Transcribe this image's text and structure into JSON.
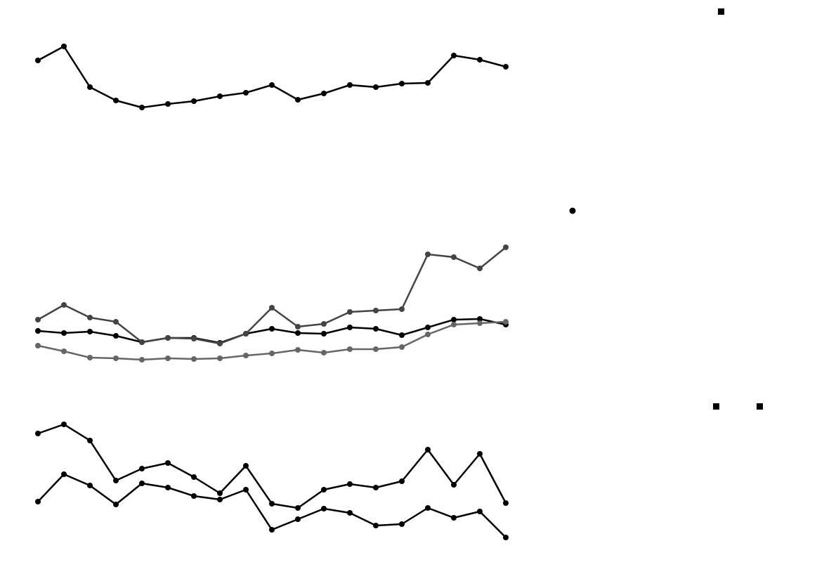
{
  "chart_data": [
    {
      "type": "line",
      "ylim": [
        0,
        230
      ],
      "series": [
        {
          "color": "#000000",
          "values": [
            174,
            194,
            136,
            117,
            107,
            112,
            116,
            123,
            128,
            139,
            118,
            127,
            139,
            136,
            141,
            142,
            181,
            175,
            165
          ]
        }
      ]
    },
    {
      "type": "line",
      "ylim": [
        0,
        220
      ],
      "series": [
        {
          "color": "#000000",
          "values": [
            69,
            66,
            68,
            62,
            53,
            59,
            59,
            52,
            65,
            72,
            66,
            65,
            74,
            72,
            63,
            74,
            85,
            86,
            78
          ]
        },
        {
          "color": "#444444",
          "values": [
            85,
            106,
            88,
            82,
            53,
            59,
            58,
            51,
            65,
            102,
            75,
            79,
            96,
            98,
            100,
            178,
            174,
            158,
            188
          ]
        },
        {
          "color": "#666666",
          "values": [
            48,
            40,
            31,
            30,
            28,
            30,
            29,
            30,
            34,
            37,
            42,
            38,
            43,
            43,
            46,
            64,
            78,
            80,
            82
          ]
        }
      ]
    },
    {
      "type": "line",
      "ylim": [
        0,
        220
      ],
      "series": [
        {
          "color": "#000000",
          "values": [
            183,
            196,
            173,
            116,
            133,
            141,
            121,
            98,
            137,
            83,
            77,
            103,
            111,
            106,
            115,
            160,
            110,
            154,
            84
          ]
        },
        {
          "color": "#000000",
          "values": [
            86,
            125,
            109,
            82,
            112,
            106,
            94,
            89,
            103,
            46,
            61,
            76,
            70,
            52,
            54,
            77,
            63,
            72,
            35
          ]
        }
      ]
    }
  ]
}
